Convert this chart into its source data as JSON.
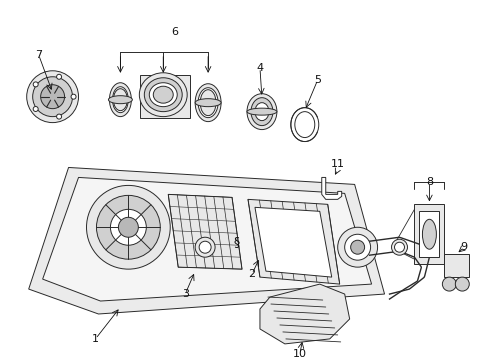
{
  "background_color": "#ffffff",
  "figsize": [
    4.89,
    3.6
  ],
  "dpi": 100,
  "line_color": "#2a2a2a",
  "text_color": "#111111",
  "fill_light": "#e8e8e8",
  "fill_mid": "#d0d0d0",
  "fill_dark": "#b8b8b8",
  "label_fontsize": 7.5,
  "lw": 0.7
}
